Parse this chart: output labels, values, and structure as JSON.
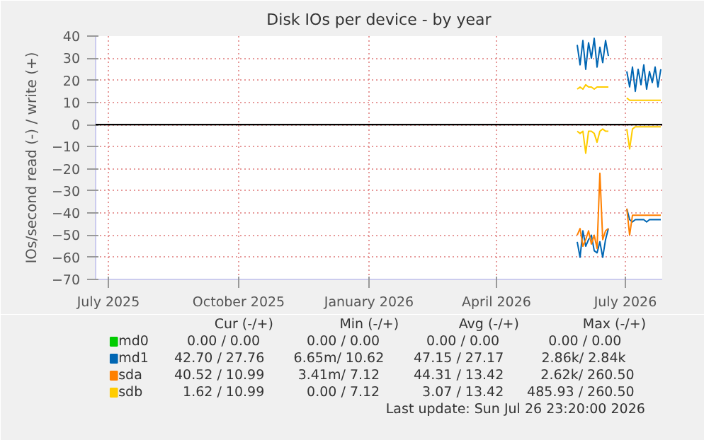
{
  "chart_data": {
    "type": "line",
    "title": "Disk IOs per device - by year",
    "ylabel": "IOs/second read (-) / write (+)",
    "x": [
      "2026-05-28",
      "2026-05-30",
      "2026-06-01",
      "2026-06-03",
      "2026-06-05",
      "2026-06-07",
      "2026-06-09",
      "2026-06-11",
      "2026-06-13",
      "2026-06-15",
      "2026-06-17",
      "2026-06-19",
      "2026-06-26",
      "2026-07-02",
      "2026-07-04",
      "2026-07-06",
      "2026-07-08",
      "2026-07-10",
      "2026-07-12",
      "2026-07-14",
      "2026-07-16",
      "2026-07-18",
      "2026-07-20",
      "2026-07-22",
      "2026-07-24",
      "2026-07-26"
    ],
    "series": [
      {
        "name": "md0",
        "color": "#00cc00",
        "values": [
          null,
          null,
          null,
          null,
          null,
          null,
          null,
          null,
          null,
          null,
          null,
          null,
          null,
          null,
          null,
          null,
          null,
          null,
          null,
          null,
          null,
          null,
          null,
          null,
          null,
          null
        ]
      },
      {
        "name": "md1",
        "color": "#0066b3",
        "values": [
          36,
          27,
          38,
          25,
          37,
          30,
          39,
          26,
          35,
          28,
          38,
          31,
          null,
          24,
          17,
          26,
          15,
          25,
          18,
          27,
          16,
          24,
          19,
          26,
          17,
          25
        ]
      },
      {
        "color": "#0066b3",
        "values": [
          -53,
          -60,
          -48,
          -55,
          -52,
          -50,
          -57,
          -58,
          -53,
          -60,
          -52,
          -47,
          null,
          -38,
          -43,
          -44,
          -43,
          -43,
          -43,
          -43,
          -44,
          -43,
          -43,
          -43,
          -43,
          -43
        ]
      },
      {
        "name": "sda",
        "color": "#ff8000",
        "values": [
          -50,
          -47,
          -55,
          -52,
          -48,
          -54,
          -50,
          -56,
          -22,
          -52,
          -48,
          -47,
          null,
          -38,
          -50,
          -41,
          -41,
          -41,
          -41,
          -41,
          -41,
          -41,
          -41,
          -41,
          -41,
          -41
        ]
      },
      {
        "name": "sdb",
        "color": "#ffcc00",
        "values": [
          16,
          17,
          16,
          18,
          17,
          17,
          16,
          17,
          17,
          17,
          17,
          17,
          null,
          12,
          11,
          11,
          11,
          11,
          11,
          11,
          11,
          11,
          11,
          11,
          11,
          11
        ]
      },
      {
        "color": "#ffcc00",
        "values": [
          -3,
          -4,
          -3,
          -13,
          -3,
          -3,
          -4,
          -8,
          -3,
          -2,
          -3,
          -3,
          null,
          -2,
          -11,
          -2,
          -1,
          -1,
          -1,
          -1,
          -1,
          -1,
          -1,
          -1,
          -1,
          -1
        ]
      }
    ],
    "xlim": [
      "2025-06-22",
      "2026-07-27"
    ],
    "xticks": [
      {
        "value": "2025-07-01",
        "label": "July 2025"
      },
      {
        "value": "2025-10-01",
        "label": "October 2025"
      },
      {
        "value": "2026-01-01",
        "label": "January 2026"
      },
      {
        "value": "2026-04-01",
        "label": "April 2026"
      },
      {
        "value": "2026-07-01",
        "label": "July 2026"
      }
    ],
    "ylim": [
      -70,
      40
    ],
    "yticks": [
      -70,
      -60,
      -50,
      -40,
      -30,
      -20,
      -10,
      0,
      10,
      20,
      30,
      40
    ],
    "ref_lines": [
      {
        "axis": "y",
        "value": 0,
        "color": "#000000"
      }
    ],
    "grid": true,
    "legend": "bottom",
    "marker": "none",
    "line_style": "solid",
    "annotations": [
      "Cur (-/+)",
      "Min (-/+)",
      "Avg (-/+)",
      "Max (-/+)",
      "0.00 /      0.00",
      "0.00 /      0.00",
      "0.00 /      0.00",
      "0.00 /      0.00",
      "42.70 /     27.76",
      "6.65m/     10.62",
      "47.15 /     27.17",
      "2.86k/     2.84k",
      "40.52 /     10.99",
      "3.41m/      7.12",
      "44.31 /     13.42",
      "2.62k/   260.50",
      "1.62 /     10.99",
      "0.00 /      7.12",
      "3.07 /     13.42",
      "485.93 /   260.50",
      "Last update: Sun Jul 26 23:20:00 2026"
    ]
  }
}
